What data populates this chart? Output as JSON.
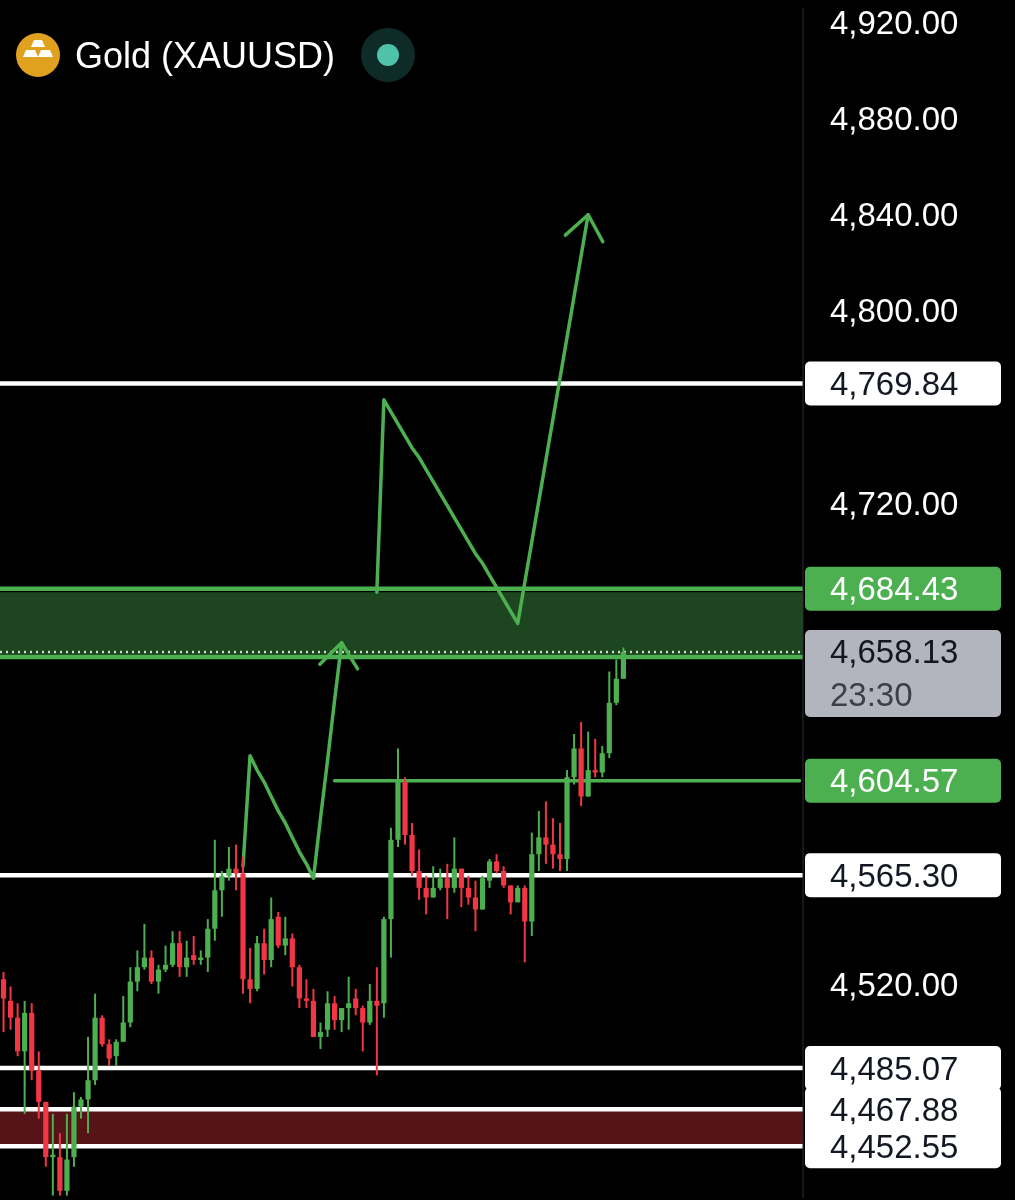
{
  "chart_data": {
    "type": "candlestick",
    "title": "Gold (XAUUSD)",
    "categories": [
      null,
      null,
      null,
      null,
      null,
      null,
      null,
      null,
      null,
      null,
      null,
      null,
      null,
      null,
      null,
      null,
      null,
      null,
      null,
      null,
      null,
      null,
      null,
      null,
      null,
      null,
      null,
      null,
      null,
      null,
      null,
      null,
      null,
      null,
      null,
      null,
      null,
      null,
      null,
      null,
      null,
      null,
      null,
      null,
      null,
      null,
      null,
      null,
      null,
      null,
      null,
      null,
      null,
      null,
      null,
      null,
      null,
      null,
      null,
      null,
      null,
      null,
      null,
      null,
      null,
      null,
      null,
      null,
      null,
      null,
      null,
      null,
      null,
      null,
      null,
      null,
      null,
      null,
      null,
      null,
      null,
      null,
      null,
      null,
      null,
      null,
      null,
      null,
      null,
      null,
      null,
      null,
      null,
      null,
      null,
      null,
      null,
      null,
      null,
      null,
      null,
      null,
      null,
      null,
      null,
      null,
      null,
      null,
      null,
      null,
      null,
      null,
      null,
      null
    ],
    "ohlc": [
      [
        4522,
        4525,
        4500,
        4514
      ],
      [
        4513,
        4519,
        4501,
        4506
      ],
      [
        4506,
        4512,
        4490,
        4492
      ],
      [
        4492,
        4513,
        4466,
        4508
      ],
      [
        4508,
        4512,
        4480,
        4484
      ],
      [
        4484,
        4492,
        4464,
        4471
      ],
      [
        4471,
        4471,
        4444,
        4448
      ],
      [
        4448,
        4466,
        4432,
        4449
      ],
      [
        4448,
        4458,
        4432,
        4434
      ],
      [
        4434,
        4466,
        4432,
        4447
      ],
      [
        4448,
        4475,
        4444,
        4469
      ],
      [
        4469,
        4473,
        4464,
        4472
      ],
      [
        4472,
        4498,
        4458,
        4480
      ],
      [
        4480,
        4516,
        4478,
        4506
      ],
      [
        4506,
        4507,
        4494,
        4495
      ],
      [
        4495,
        4497,
        4486,
        4489
      ],
      [
        4490,
        4497,
        4486,
        4496
      ],
      [
        4496,
        4515,
        4496,
        4504
      ],
      [
        4504,
        4527,
        4502,
        4521
      ],
      [
        4521,
        4534,
        4517,
        4527
      ],
      [
        4527,
        4545,
        4526,
        4531
      ],
      [
        4531,
        4534,
        4520,
        4521
      ],
      [
        4521,
        4528,
        4516,
        4526
      ],
      [
        4526,
        4536,
        4525,
        4528
      ],
      [
        4528,
        4542,
        4527,
        4537
      ],
      [
        4537,
        4542,
        4523,
        4527
      ],
      [
        4527,
        4538,
        4523,
        4531
      ],
      [
        4532,
        4540,
        4528,
        4530
      ],
      [
        4530,
        4534,
        4528,
        4531
      ],
      [
        4531,
        4547,
        4525,
        4543
      ],
      [
        4543,
        4580,
        4538,
        4559
      ],
      [
        4559,
        4567,
        4548,
        4565
      ],
      [
        4565,
        4577,
        4563,
        4568
      ],
      [
        4568,
        4578,
        4559,
        4566
      ],
      [
        4566,
        4573,
        4516,
        4522
      ],
      [
        4522,
        4535,
        4512,
        4518
      ],
      [
        4518,
        4540,
        4517,
        4537
      ],
      [
        4537,
        4543,
        4524,
        4530
      ],
      [
        4530,
        4556,
        4527,
        4547
      ],
      [
        4548,
        4550,
        4535,
        4536
      ],
      [
        4536,
        4548,
        4532,
        4539
      ],
      [
        4539,
        4541,
        4519,
        4527
      ],
      [
        4527,
        4528,
        4510,
        4514
      ],
      [
        4514,
        4522,
        4510,
        4513
      ],
      [
        4513,
        4518,
        4498,
        4498
      ],
      [
        4498,
        4504,
        4493,
        4500
      ],
      [
        4501,
        4517,
        4498,
        4512
      ],
      [
        4512,
        4515,
        4501,
        4505
      ],
      [
        4505,
        4510,
        4500,
        4510
      ],
      [
        4510,
        4523,
        4501,
        4512
      ],
      [
        4514,
        4518,
        4507,
        4510
      ],
      [
        4510,
        4511,
        4492,
        4504
      ],
      [
        4504,
        4520,
        4503,
        4513
      ],
      [
        4513,
        4527,
        4482,
        4511
      ],
      [
        4512,
        4548,
        4506,
        4547
      ],
      [
        4547,
        4585,
        4531,
        4580
      ],
      [
        4580,
        4618,
        4577,
        4604
      ],
      [
        4604,
        4606,
        4578,
        4582
      ],
      [
        4582,
        4587,
        4565,
        4567
      ],
      [
        4567,
        4576,
        4555,
        4560
      ],
      [
        4560,
        4565,
        4549,
        4556
      ],
      [
        4556,
        4569,
        4556,
        4560
      ],
      [
        4560,
        4568,
        4559,
        4564
      ],
      [
        4564,
        4570,
        4547,
        4560
      ],
      [
        4560,
        4581,
        4558,
        4568
      ],
      [
        4568,
        4568,
        4552,
        4560
      ],
      [
        4560,
        4565,
        4553,
        4556
      ],
      [
        4556,
        4563,
        4542,
        4551
      ],
      [
        4551,
        4565,
        4551,
        4564
      ],
      [
        4563,
        4572,
        4560,
        4571
      ],
      [
        4571,
        4574,
        4566,
        4567
      ],
      [
        4567,
        4569,
        4560,
        4561
      ],
      [
        4561,
        4561,
        4549,
        4554
      ],
      [
        4554,
        4561,
        4554,
        4560
      ],
      [
        4560,
        4561,
        4529,
        4546
      ],
      [
        4546,
        4583,
        4540,
        4574
      ],
      [
        4574,
        4592,
        4567,
        4581
      ],
      [
        4581,
        4596,
        4570,
        4578
      ],
      [
        4578,
        4589,
        4568,
        4574
      ],
      [
        4574,
        4587,
        4567,
        4572
      ],
      [
        4572,
        4609,
        4567,
        4606
      ],
      [
        4606,
        4624,
        4603,
        4618
      ],
      [
        4618,
        4629,
        4594,
        4598
      ],
      [
        4598,
        4625,
        4598,
        4609
      ],
      [
        4609,
        4622,
        4606,
        4608
      ],
      [
        4608,
        4619,
        4606,
        4616
      ],
      [
        4616,
        4650,
        4614,
        4637
      ],
      [
        4637,
        4655,
        4636,
        4647
      ],
      [
        4647,
        4660,
        4647,
        4658.13
      ],
      null,
      null,
      null,
      null,
      null,
      null,
      null,
      null,
      null,
      null,
      null,
      null,
      null,
      null,
      null,
      null,
      null,
      null,
      null,
      null,
      null,
      null,
      null,
      null,
      null
    ],
    "colors": [
      "#f23645",
      "#f23645",
      "#f23645",
      "#4caf50",
      "#f23645",
      "#f23645",
      "#f23645",
      "#4caf50",
      "#f23645",
      "#4caf50",
      "#4caf50",
      "#4caf50",
      "#4caf50",
      "#4caf50",
      "#f23645",
      "#f23645",
      "#4caf50",
      "#4caf50",
      "#4caf50",
      "#4caf50",
      "#4caf50",
      "#f23645",
      "#4caf50",
      "#4caf50",
      "#4caf50",
      "#f23645",
      "#4caf50",
      "#f23645",
      "#4caf50",
      "#4caf50",
      "#4caf50",
      "#4caf50",
      "#4caf50",
      "#f23645",
      "#f23645",
      "#f23645",
      "#4caf50",
      "#f23645",
      "#4caf50",
      "#f23645",
      "#4caf50",
      "#f23645",
      "#f23645",
      "#f23645",
      "#f23645",
      "#4caf50",
      "#4caf50",
      "#f23645",
      "#4caf50",
      "#4caf50",
      "#f23645",
      "#f23645",
      "#4caf50",
      "#f23645",
      "#4caf50",
      "#4caf50",
      "#4caf50",
      "#f23645",
      "#f23645",
      "#f23645",
      "#f23645",
      "#4caf50",
      "#4caf50",
      "#f23645",
      "#4caf50",
      "#f23645",
      "#f23645",
      "#f23645",
      "#4caf50",
      "#4caf50",
      "#f23645",
      "#f23645",
      "#f23645",
      "#4caf50",
      "#f23645",
      "#4caf50",
      "#4caf50",
      "#f23645",
      "#f23645",
      "#f23645",
      "#4caf50",
      "#4caf50",
      "#f23645",
      "#4caf50",
      "#f23645",
      "#4caf50",
      "#4caf50",
      "#4caf50",
      "#4caf50",
      null,
      null,
      null,
      null,
      null,
      null,
      null,
      null,
      null,
      null,
      null,
      null,
      null,
      null,
      null,
      null,
      null,
      null,
      null,
      null,
      null,
      null,
      null,
      null,
      null
    ],
    "series": [
      {
        "type": "line",
        "color": "#4caf50",
        "values": [
          null,
          null,
          null,
          null,
          null,
          null,
          null,
          null,
          null,
          null,
          null,
          null,
          null,
          null,
          null,
          null,
          null,
          null,
          null,
          null,
          null,
          null,
          null,
          null,
          null,
          null,
          null,
          null,
          null,
          null,
          null,
          null,
          null,
          null,
          4569,
          4615,
          4609,
          4604,
          4598,
          4592,
          4587,
          4581,
          4575,
          4570,
          4564,
          4589,
          4613,
          4638,
          4662,
          null,
          null,
          null,
          null,
          null,
          null,
          null,
          null,
          null,
          null,
          null,
          null,
          null,
          null,
          null,
          null,
          null,
          null,
          null,
          null,
          null,
          null,
          null,
          null,
          null,
          null,
          null,
          null,
          null,
          null,
          null,
          null,
          null,
          null,
          null,
          null,
          null,
          null,
          null,
          null,
          null,
          null,
          null,
          null,
          null,
          null,
          null,
          null,
          null,
          null,
          null,
          null,
          null,
          null,
          null,
          null,
          null,
          null,
          null,
          null,
          null,
          null,
          null,
          null,
          null
        ]
      },
      {
        "type": "line",
        "color": "#4caf50",
        "values": [
          null,
          null,
          null,
          null,
          null,
          null,
          null,
          null,
          null,
          null,
          null,
          null,
          null,
          null,
          null,
          null,
          null,
          null,
          null,
          null,
          null,
          null,
          null,
          null,
          null,
          null,
          null,
          null,
          null,
          null,
          null,
          null,
          null,
          null,
          null,
          null,
          null,
          null,
          null,
          null,
          null,
          null,
          null,
          null,
          null,
          null,
          null,
          null,
          null,
          null,
          null,
          null,
          null,
          4683,
          4763,
          4758,
          4753,
          4748,
          4743,
          4739,
          4734,
          4729,
          4724,
          4719,
          4714,
          4709,
          4704,
          4699,
          4695,
          4690,
          4685,
          4680,
          4675,
          4670,
          4687,
          4704,
          4721,
          4738,
          4755,
          4772,
          4789,
          4806,
          4823,
          4840,
          null,
          null,
          null,
          null,
          null,
          null,
          null,
          null,
          null,
          null,
          null,
          null,
          null,
          null,
          null,
          null,
          null,
          null,
          null,
          null,
          null,
          null,
          null,
          null,
          null,
          null,
          null,
          null,
          null,
          null
        ]
      },
      {
        "type": "line",
        "color": "#4caf50",
        "values": [
          null,
          null,
          null,
          null,
          null,
          null,
          null,
          null,
          null,
          null,
          null,
          null,
          null,
          null,
          null,
          null,
          null,
          null,
          null,
          null,
          null,
          null,
          null,
          null,
          null,
          null,
          null,
          null,
          null,
          null,
          null,
          null,
          null,
          null,
          null,
          null,
          null,
          null,
          null,
          null,
          null,
          null,
          null,
          null,
          null,
          null,
          null,
          4604.57,
          4604.57,
          4604.57,
          4604.57,
          4604.57,
          4604.57,
          4604.57,
          4604.57,
          4604.57,
          4604.57,
          4604.57,
          4604.57,
          4604.57,
          4604.57,
          4604.57,
          4604.57,
          4604.57,
          4604.57,
          4604.57,
          4604.57,
          4604.57,
          4604.57,
          4604.57,
          4604.57,
          4604.57,
          4604.57,
          4604.57,
          4604.57,
          4604.57,
          4604.57,
          4604.57,
          4604.57,
          4604.57,
          4604.57,
          4604.57,
          4604.57,
          4604.57,
          4604.57,
          4604.57,
          4604.57,
          4604.57,
          4604.57,
          4604.57,
          4604.57,
          4604.57,
          4604.57,
          4604.57,
          4604.57,
          4604.57,
          4604.57,
          4604.57,
          4604.57,
          4604.57,
          4604.57,
          4604.57,
          4604.57,
          4604.57,
          4604.57,
          4604.57,
          4604.57,
          4604.57,
          4604.57,
          4604.57,
          4604.57,
          4604.57,
          4604.57,
          4604.57
        ],
        "value_labels": [
          null,
          null,
          null,
          null,
          null,
          null,
          null,
          null,
          null,
          null,
          null,
          null,
          null,
          null,
          null,
          null,
          null,
          null,
          null,
          null,
          null,
          null,
          null,
          null,
          null,
          null,
          null,
          null,
          null,
          null,
          null,
          null,
          null,
          null,
          null,
          null,
          null,
          null,
          null,
          null,
          null,
          null,
          null,
          null,
          null,
          null,
          null,
          null,
          null,
          null,
          null,
          null,
          null,
          null,
          null,
          null,
          null,
          null,
          null,
          null,
          null,
          null,
          null,
          null,
          null,
          null,
          null,
          null,
          null,
          null,
          null,
          null,
          null,
          null,
          null,
          null,
          null,
          null,
          null,
          null,
          null,
          null,
          null,
          null,
          null,
          null,
          null,
          null,
          null,
          null,
          null,
          null,
          null,
          null,
          null,
          null,
          null,
          null,
          null,
          null,
          null,
          null,
          null,
          null,
          null,
          null,
          null,
          null,
          null,
          null,
          null,
          null,
          null,
          "4,604.57"
        ]
      }
    ],
    "ylim": [
      4431,
      4926
    ],
    "yticks": [
      {
        "value": 4520,
        "label": "4,520.00"
      },
      {
        "value": 4720,
        "label": "4,720.00"
      },
      {
        "value": 4800,
        "label": "4,800.00"
      },
      {
        "value": 4840,
        "label": "4,840.00"
      },
      {
        "value": 4880,
        "label": "4,880.00"
      },
      {
        "value": 4920,
        "label": "4,920.00"
      }
    ],
    "tick_labels": "y",
    "bands": [
      {
        "axis": "y",
        "from": 4657,
        "to": 4683,
        "color": "#1d4620"
      },
      {
        "axis": "y",
        "from": 4452.55,
        "to": 4467.88,
        "color": "#561419"
      }
    ],
    "ref_lines": [
      {
        "axis": "y",
        "value": 4769.84,
        "label": "4,769.84",
        "color": "#ffffff"
      },
      {
        "axis": "y",
        "value": 4684.43,
        "label": "4,684.43",
        "color": "#4caf50"
      },
      {
        "axis": "y",
        "value": 4656,
        "color": "#4caf50"
      },
      {
        "axis": "y",
        "value": 4658.13,
        "label": "4,658.13\n23:30",
        "color": "#c5dcc5",
        "line_style": "dotted"
      },
      {
        "axis": "y",
        "value": 4565.3,
        "label": "4,565.30",
        "color": "#ffffff"
      },
      {
        "axis": "y",
        "value": 4485.07,
        "label": "4,485.07",
        "color": "#ffffff"
      },
      {
        "axis": "y",
        "value": 4467.88,
        "label": "4,467.88",
        "color": "#ffffff"
      },
      {
        "axis": "y",
        "value": 4452.55,
        "label": "4,452.55",
        "color": "#ffffff"
      }
    ]
  }
}
